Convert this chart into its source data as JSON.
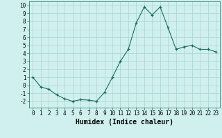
{
  "x": [
    0,
    1,
    2,
    3,
    4,
    5,
    6,
    7,
    8,
    9,
    10,
    11,
    12,
    13,
    14,
    15,
    16,
    17,
    18,
    19,
    20,
    21,
    22,
    23
  ],
  "y": [
    1.0,
    -0.2,
    -0.5,
    -1.2,
    -1.7,
    -2.0,
    -1.8,
    -1.85,
    -2.0,
    -0.9,
    1.0,
    3.0,
    4.5,
    7.8,
    9.8,
    8.8,
    9.8,
    7.2,
    4.5,
    4.8,
    5.0,
    4.5,
    4.5,
    4.2
  ],
  "xlabel": "Humidex (Indice chaleur)",
  "ylim": [
    -2.8,
    10.5
  ],
  "xlim": [
    -0.5,
    23.5
  ],
  "yticks": [
    -2,
    -1,
    0,
    1,
    2,
    3,
    4,
    5,
    6,
    7,
    8,
    9,
    10
  ],
  "xticks": [
    0,
    1,
    2,
    3,
    4,
    5,
    6,
    7,
    8,
    9,
    10,
    11,
    12,
    13,
    14,
    15,
    16,
    17,
    18,
    19,
    20,
    21,
    22,
    23
  ],
  "line_color": "#1a6b5a",
  "marker": "+",
  "bg_color": "#cff0ee",
  "grid_color": "#b0d8d4",
  "xlabel_fontsize": 7,
  "tick_fontsize": 5.5
}
